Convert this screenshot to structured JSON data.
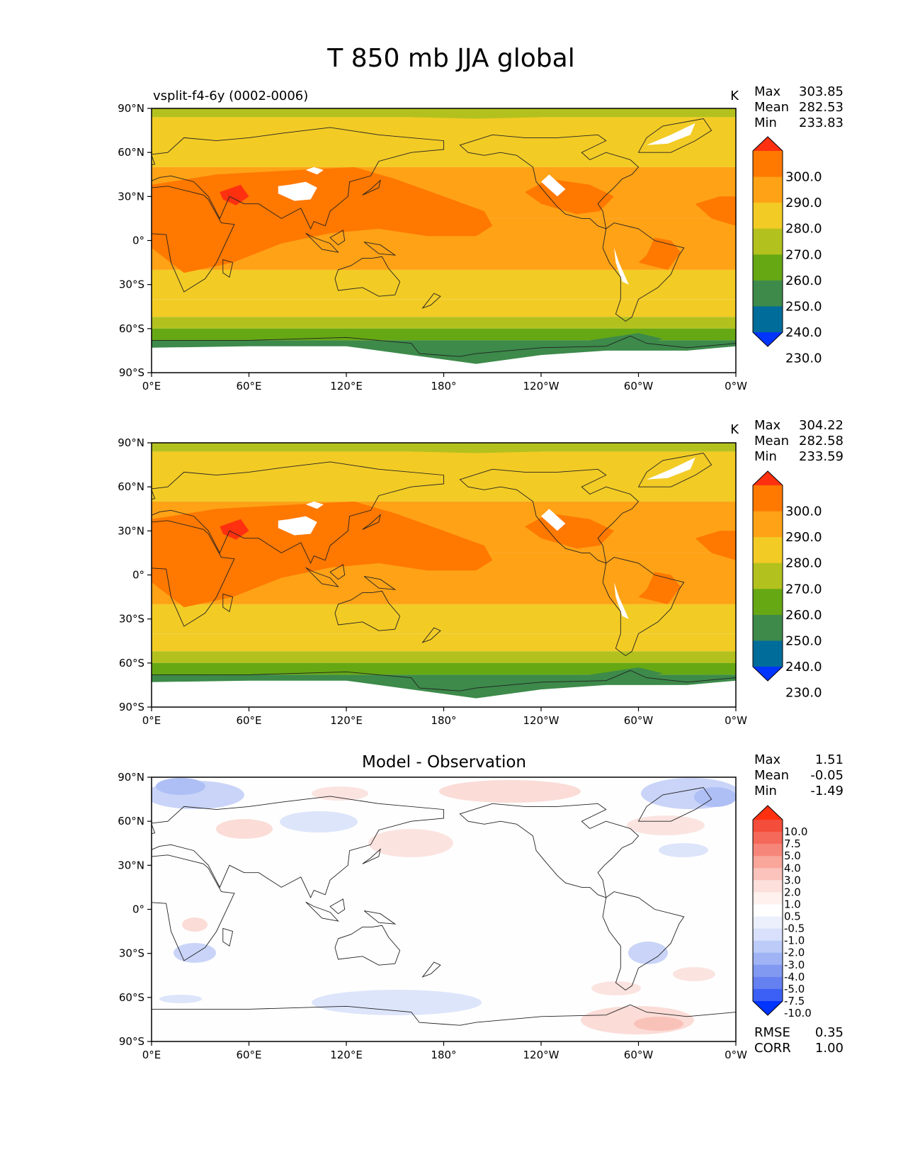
{
  "figure_title": "T 850 mb JJA global",
  "axes": {
    "x_ticks": [
      "0°E",
      "60°E",
      "120°E",
      "180°",
      "120°W",
      "60°W",
      "0°W"
    ],
    "y_ticks": [
      "90°N",
      "60°N",
      "30°N",
      "0°",
      "30°S",
      "60°S",
      "90°S"
    ]
  },
  "chart_data": [
    {
      "type": "heatmap",
      "title": "",
      "subtitle_left": "vsplit-f4-6y (0002-0006)",
      "units": "K",
      "stats": {
        "max_label": "Max",
        "max": "303.85",
        "mean_label": "Mean",
        "mean": "282.53",
        "min_label": "Min",
        "min": "233.83"
      },
      "colorbar": {
        "levels": [
          "300.0",
          "290.0",
          "280.0",
          "270.0",
          "260.0",
          "250.0",
          "240.0",
          "230.0"
        ],
        "colors": [
          "#ff3010",
          "#ff7800",
          "#ffa216",
          "#f2cb25",
          "#b3c11e",
          "#66a814",
          "#3d8a4a",
          "#006c9a",
          "#0034ff"
        ]
      },
      "bands": [
        {
          "lat_top": 90,
          "lat_bottom": 84,
          "value": 265
        },
        {
          "lat_top": 84,
          "lat_bottom": 50,
          "value": 275
        },
        {
          "lat_top": 50,
          "lat_bottom": 15,
          "value": 285
        },
        {
          "lat_top": 15,
          "lat_bottom": -20,
          "value": 285
        },
        {
          "lat_top": -20,
          "lat_bottom": -40,
          "value": 275
        },
        {
          "lat_top": -40,
          "lat_bottom": -52,
          "value": 272
        },
        {
          "lat_top": -52,
          "lat_bottom": -60,
          "value": 265
        },
        {
          "lat_top": -60,
          "lat_bottom": -68,
          "value": 255
        },
        {
          "lat_top": -68,
          "lat_bottom": -90,
          "value": 245
        }
      ],
      "xlim": [
        0,
        360
      ],
      "ylim": [
        -90,
        90
      ]
    },
    {
      "type": "heatmap",
      "title": "",
      "subtitle_left": "",
      "units": "K",
      "stats": {
        "max_label": "Max",
        "max": "304.22",
        "mean_label": "Mean",
        "mean": "282.58",
        "min_label": "Min",
        "min": "233.59"
      },
      "colorbar": {
        "levels": [
          "300.0",
          "290.0",
          "280.0",
          "270.0",
          "260.0",
          "250.0",
          "240.0",
          "230.0"
        ],
        "colors": [
          "#ff3010",
          "#ff7800",
          "#ffa216",
          "#f2cb25",
          "#b3c11e",
          "#66a814",
          "#3d8a4a",
          "#006c9a",
          "#0034ff"
        ]
      },
      "bands": [
        {
          "lat_top": 90,
          "lat_bottom": 84,
          "value": 265
        },
        {
          "lat_top": 84,
          "lat_bottom": 50,
          "value": 275
        },
        {
          "lat_top": 50,
          "lat_bottom": 15,
          "value": 285
        },
        {
          "lat_top": 15,
          "lat_bottom": -20,
          "value": 285
        },
        {
          "lat_top": -20,
          "lat_bottom": -40,
          "value": 275
        },
        {
          "lat_top": -40,
          "lat_bottom": -52,
          "value": 272
        },
        {
          "lat_top": -52,
          "lat_bottom": -60,
          "value": 265
        },
        {
          "lat_top": -60,
          "lat_bottom": -68,
          "value": 255
        },
        {
          "lat_top": -68,
          "lat_bottom": -90,
          "value": 245
        }
      ],
      "xlim": [
        0,
        360
      ],
      "ylim": [
        -90,
        90
      ]
    },
    {
      "type": "heatmap",
      "title": "Model - Observation",
      "subtitle_left": "",
      "units": "",
      "stats": {
        "max_label": "Max",
        "max": "1.51",
        "mean_label": "Mean",
        "mean": "-0.05",
        "min_label": "Min",
        "min": "-1.49"
      },
      "extra_stats": [
        {
          "label": "RMSE",
          "value": "0.35"
        },
        {
          "label": "CORR",
          "value": "1.00"
        }
      ],
      "colorbar": {
        "levels": [
          "10.0",
          "7.5",
          "5.0",
          "4.0",
          "3.0",
          "2.0",
          "1.0",
          "0.5",
          "-0.5",
          "-1.0",
          "-2.0",
          "-3.0",
          "-4.0",
          "-5.0",
          "-7.5",
          "-10.0"
        ],
        "colors": [
          "#ff3010",
          "#f44d3b",
          "#f5695a",
          "#f7867a",
          "#f9a69b",
          "#fbc3bb",
          "#fde0db",
          "#fef1ee",
          "#ffffff",
          "#ecf0fd",
          "#d8e0fb",
          "#bccbf8",
          "#9fb3f5",
          "#8299f2",
          "#6580f0",
          "#3c60f5",
          "#0034ff"
        ]
      },
      "xlim": [
        0,
        360
      ],
      "ylim": [
        -90,
        90
      ]
    }
  ]
}
